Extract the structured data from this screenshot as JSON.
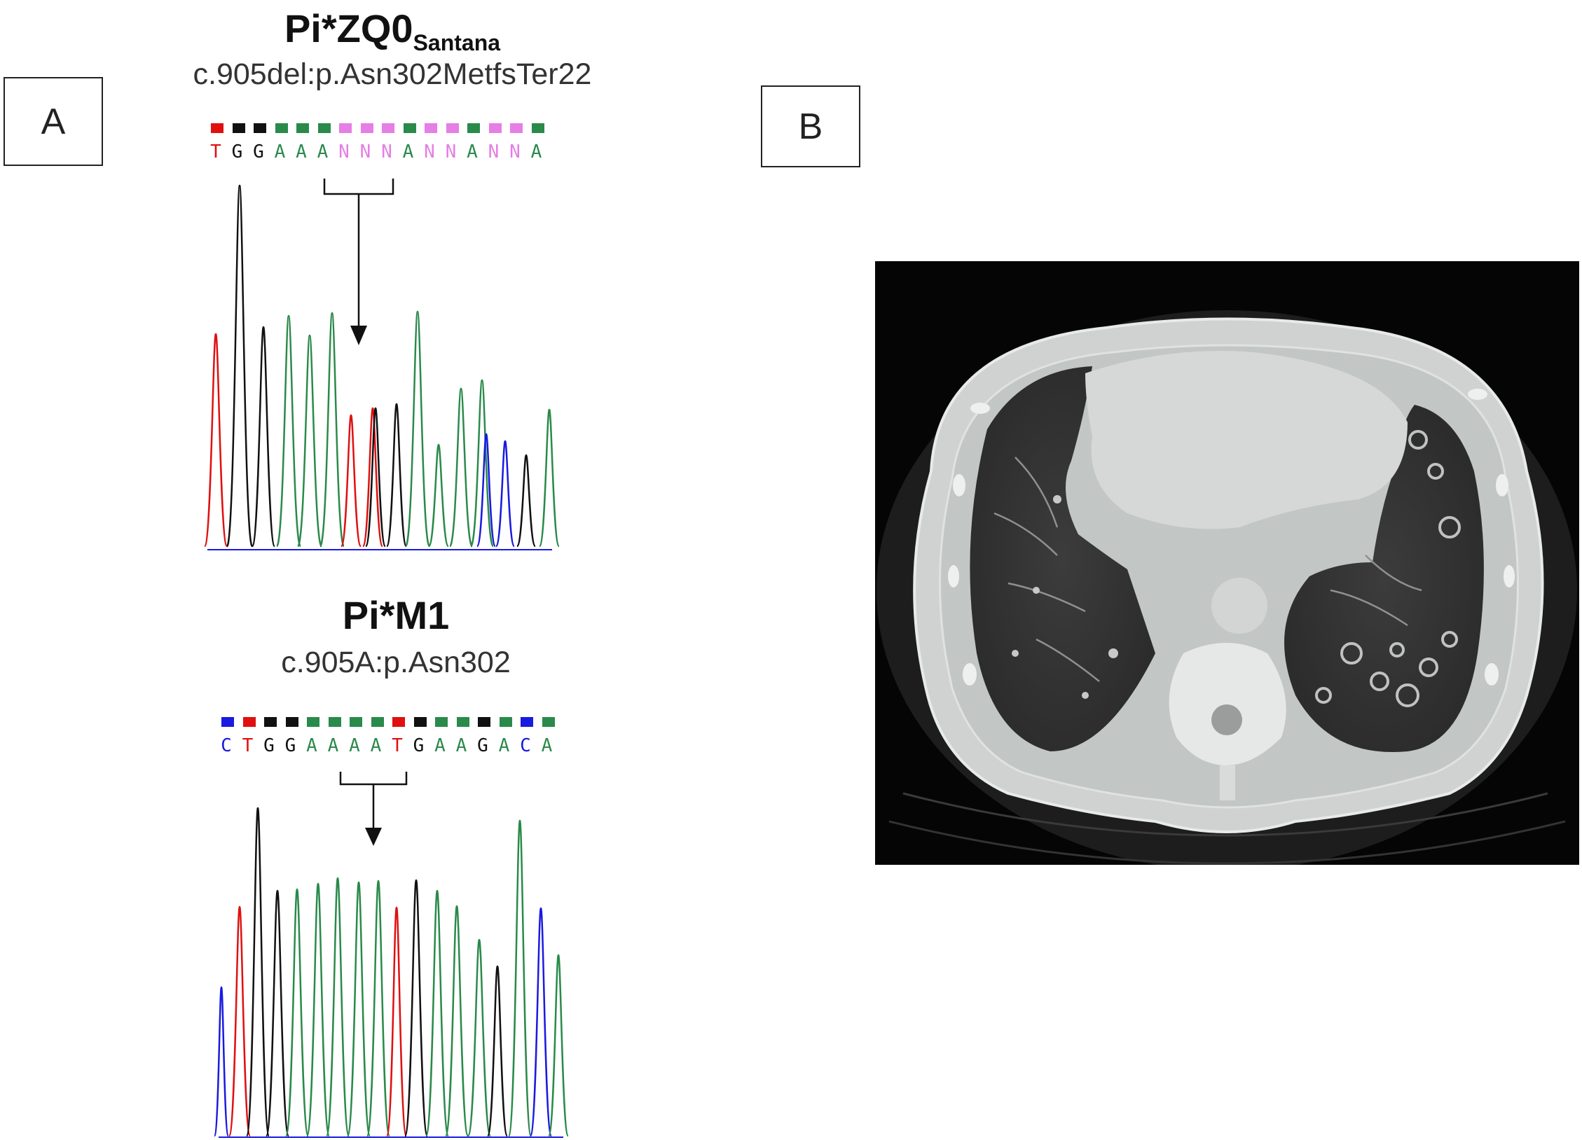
{
  "panel_a": {
    "label": "A",
    "top": {
      "title_main": "Pi*ZQ0",
      "title_sub": "Santana",
      "subtitle": "c.905del:p.Asn302MetfsTer22",
      "bases": [
        "T",
        "G",
        "G",
        "A",
        "A",
        "A",
        "N",
        "N",
        "N",
        "A",
        "N",
        "N",
        "A",
        "N",
        "N",
        "A"
      ],
      "square_colors": [
        "#e01010",
        "#111111",
        "#111111",
        "#2a8a4a",
        "#2a8a4a",
        "#2a8a4a",
        "#e57ee5",
        "#e57ee5",
        "#e57ee5",
        "#2a8a4a",
        "#e57ee5",
        "#e57ee5",
        "#2a8a4a",
        "#e57ee5",
        "#e57ee5",
        "#2a8a4a"
      ]
    },
    "bottom": {
      "title": "Pi*M1",
      "subtitle": "c.905A:p.Asn302",
      "bases": [
        "C",
        "T",
        "G",
        "G",
        "A",
        "A",
        "A",
        "A",
        "T",
        "G",
        "A",
        "A",
        "G",
        "A",
        "C",
        "A"
      ],
      "square_colors": [
        "#1a1ae0",
        "#e01010",
        "#111111",
        "#111111",
        "#2a8a4a",
        "#2a8a4a",
        "#2a8a4a",
        "#2a8a4a",
        "#e01010",
        "#111111",
        "#2a8a4a",
        "#2a8a4a",
        "#111111",
        "#2a8a4a",
        "#1a1ae0",
        "#2a8a4a"
      ]
    },
    "base_colors": {
      "A": "#2a8a4a",
      "G": "#111111",
      "T": "#e01010",
      "C": "#1a1ae0",
      "N": "#e57ee5"
    }
  },
  "panel_b": {
    "label": "B"
  }
}
